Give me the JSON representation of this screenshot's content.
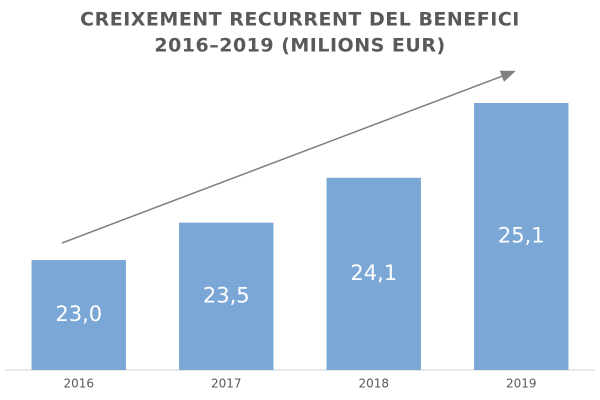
{
  "chart_data": {
    "type": "bar",
    "title": "CREIXEMENT RECURRENT DEL BENEFICI",
    "subtitle": "2016–2019 (MILIONS EUR)",
    "categories": [
      "2016",
      "2017",
      "2018",
      "2019"
    ],
    "values": [
      23.0,
      23.5,
      24.1,
      25.1
    ],
    "value_labels": [
      "23,0",
      "23,5",
      "24,1",
      "25,1"
    ],
    "color": "#7ba7d7",
    "ylim": [
      21.53,
      25.14
    ]
  }
}
